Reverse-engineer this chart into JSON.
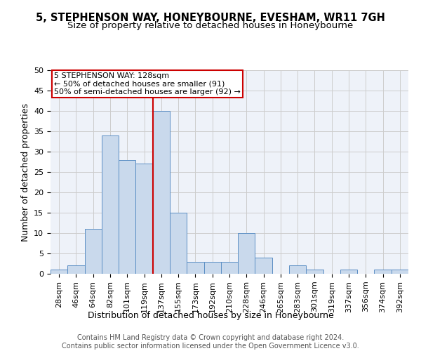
{
  "title": "5, STEPHENSON WAY, HONEYBOURNE, EVESHAM, WR11 7GH",
  "subtitle": "Size of property relative to detached houses in Honeybourne",
  "xlabel": "Distribution of detached houses by size in Honeybourne",
  "ylabel": "Number of detached properties",
  "categories": [
    "28sqm",
    "46sqm",
    "64sqm",
    "82sqm",
    "101sqm",
    "119sqm",
    "137sqm",
    "155sqm",
    "173sqm",
    "192sqm",
    "210sqm",
    "228sqm",
    "246sqm",
    "265sqm",
    "283sqm",
    "301sqm",
    "319sqm",
    "337sqm",
    "356sqm",
    "374sqm",
    "392sqm"
  ],
  "values": [
    1,
    2,
    11,
    34,
    28,
    27,
    40,
    15,
    3,
    3,
    3,
    10,
    4,
    0,
    2,
    1,
    0,
    1,
    0,
    1,
    1
  ],
  "bar_color": "#c9d9ec",
  "bar_edge_color": "#5b8ec4",
  "vertical_line_x": 5.5,
  "vertical_line_color": "#cc0000",
  "annotation_text_line1": "5 STEPHENSON WAY: 128sqm",
  "annotation_text_line2": "← 50% of detached houses are smaller (91)",
  "annotation_text_line3": "50% of semi-detached houses are larger (92) →",
  "grid_color": "#cccccc",
  "ylim": [
    0,
    50
  ],
  "yticks": [
    0,
    5,
    10,
    15,
    20,
    25,
    30,
    35,
    40,
    45,
    50
  ],
  "title_fontsize": 10.5,
  "subtitle_fontsize": 9.5,
  "ylabel_fontsize": 9,
  "xlabel_fontsize": 9,
  "tick_fontsize": 8,
  "annot_fontsize": 8,
  "footer_fontsize": 7,
  "bg_color": "#eef2f9",
  "footer_text": "Contains HM Land Registry data © Crown copyright and database right 2024.\nContains public sector information licensed under the Open Government Licence v3.0."
}
